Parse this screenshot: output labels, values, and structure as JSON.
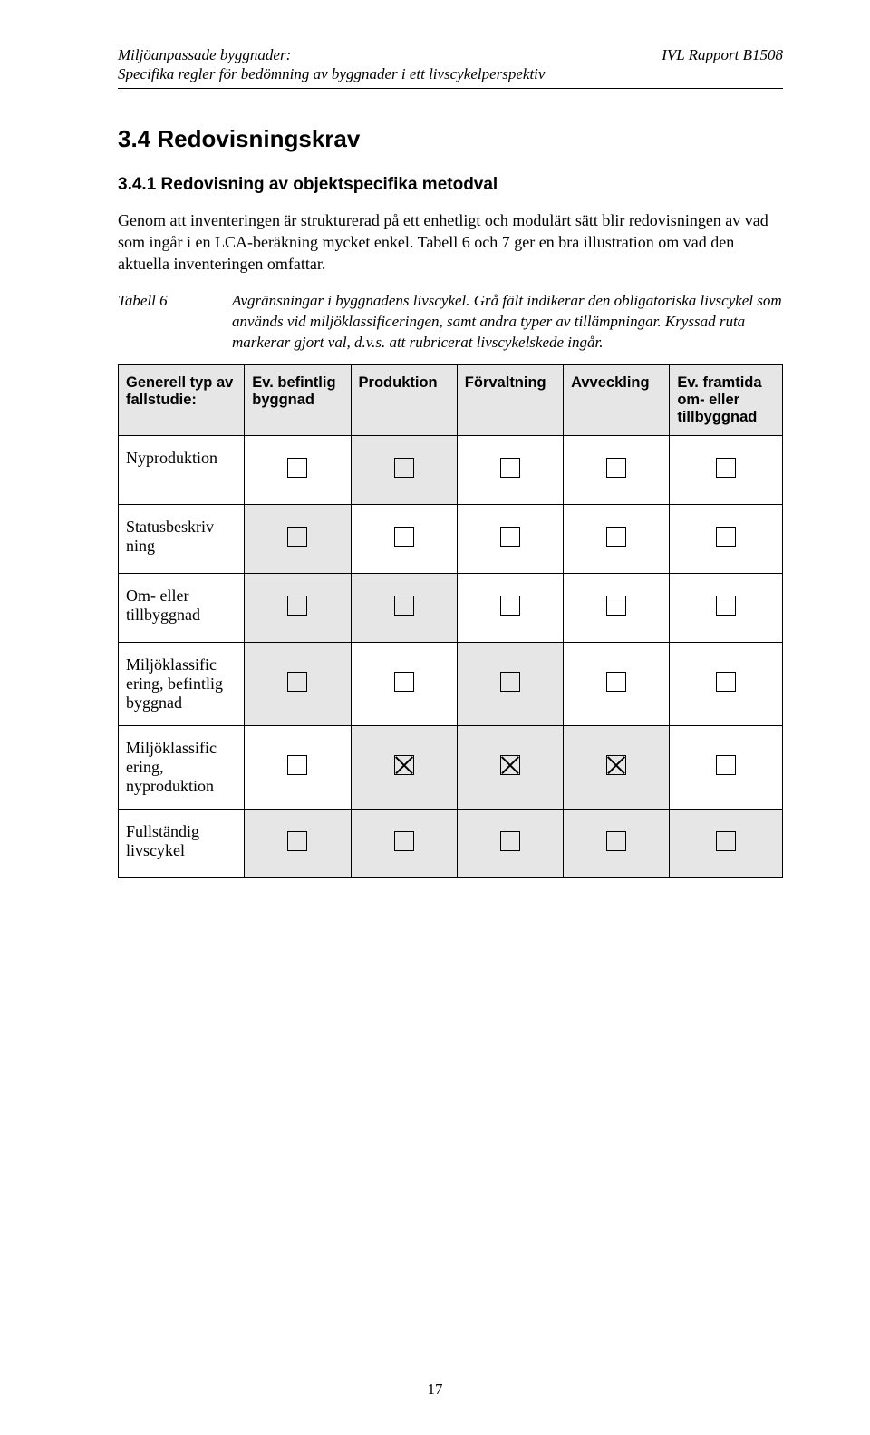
{
  "header": {
    "left_line1": "Miljöanpassade byggnader:",
    "left_line2": "Specifika regler för bedömning av byggnader i ett livscykelperspektiv",
    "right": "IVL Rapport  B1508"
  },
  "section": {
    "h2": "3.4  Redovisningskrav",
    "h3": "3.4.1  Redovisning av objektspecifika metodval",
    "para": "Genom att inventeringen är strukturerad på ett enhetligt och modulärt sätt blir redovisningen av vad som ingår i en LCA-beräkning mycket enkel. Tabell 6 och 7 ger en bra illustration om vad den aktuella inventeringen omfattar."
  },
  "caption": {
    "label": "Tabell 6",
    "text": "Avgränsningar i byggnadens livscykel. Grå fält indikerar den obligatoriska livscykel som används vid miljöklassificeringen, samt andra typer av tillämpningar. Kryssad ruta markerar gjort val, d.v.s. att rubricerat livscykelskede ingår."
  },
  "table": {
    "columns": [
      "Generell typ av fallstudie:",
      "Ev. befintlig byggnad",
      "Produktion",
      "Förvaltning",
      "Avveckling",
      "Ev. framtida om- eller tillbyggnad"
    ],
    "col_widths_pct": [
      19,
      16,
      16,
      16,
      16,
      17
    ],
    "rows": [
      {
        "label": "Nyproduktion",
        "cells": [
          {
            "gray": false,
            "crossed": false
          },
          {
            "gray": true,
            "crossed": false
          },
          {
            "gray": false,
            "crossed": false
          },
          {
            "gray": false,
            "crossed": false
          },
          {
            "gray": false,
            "crossed": false
          }
        ]
      },
      {
        "label": "Statusbeskriv ning",
        "cells": [
          {
            "gray": true,
            "crossed": false
          },
          {
            "gray": false,
            "crossed": false
          },
          {
            "gray": false,
            "crossed": false
          },
          {
            "gray": false,
            "crossed": false
          },
          {
            "gray": false,
            "crossed": false
          }
        ]
      },
      {
        "label": "Om- eller tillbyggnad",
        "cells": [
          {
            "gray": true,
            "crossed": false
          },
          {
            "gray": true,
            "crossed": false
          },
          {
            "gray": false,
            "crossed": false
          },
          {
            "gray": false,
            "crossed": false
          },
          {
            "gray": false,
            "crossed": false
          }
        ]
      },
      {
        "label": "Miljöklassific ering, befintlig byggnad",
        "cells": [
          {
            "gray": true,
            "crossed": false
          },
          {
            "gray": false,
            "crossed": false
          },
          {
            "gray": true,
            "crossed": false
          },
          {
            "gray": false,
            "crossed": false
          },
          {
            "gray": false,
            "crossed": false
          }
        ]
      },
      {
        "label": "Miljöklassific ering, nyproduktion",
        "cells": [
          {
            "gray": false,
            "crossed": false
          },
          {
            "gray": true,
            "crossed": true
          },
          {
            "gray": true,
            "crossed": true
          },
          {
            "gray": true,
            "crossed": true
          },
          {
            "gray": false,
            "crossed": false
          }
        ]
      },
      {
        "label": "Fullständig livscykel",
        "cells": [
          {
            "gray": true,
            "crossed": false
          },
          {
            "gray": true,
            "crossed": false
          },
          {
            "gray": true,
            "crossed": false
          },
          {
            "gray": true,
            "crossed": false
          },
          {
            "gray": true,
            "crossed": false
          }
        ]
      }
    ]
  },
  "page_number": "17",
  "colors": {
    "gray_fill": "#e6e6e6",
    "text": "#000000",
    "page_bg": "#ffffff"
  }
}
